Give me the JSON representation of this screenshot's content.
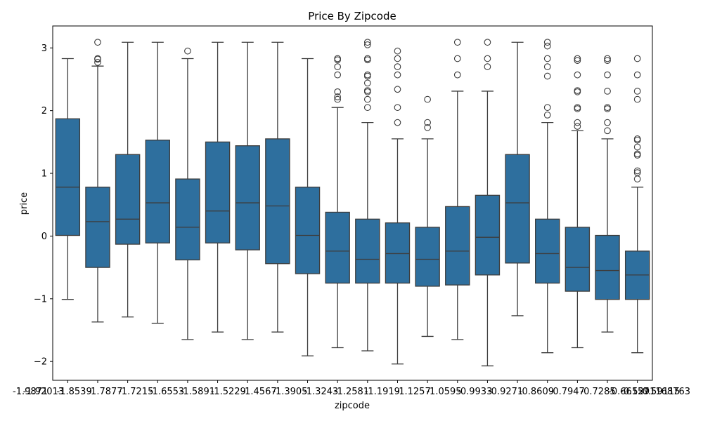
{
  "chart_data": {
    "type": "box",
    "title": "Price By Zipcode",
    "xlabel": "zipcode",
    "ylabel": "price",
    "ylim": [
      -2.3,
      3.35
    ],
    "yticks": [
      -2,
      -1,
      0,
      1,
      2,
      3
    ],
    "ytick_labels": [
      "−2",
      "−1",
      "0",
      "1",
      "2",
      "3"
    ],
    "box_color": "#2e6f9e",
    "line_color": "#3d3d3d",
    "xtick_label_segments": [
      "-1.9871",
      "-1.92013",
      "-1.8539",
      "-1.7877",
      "-1.7215",
      "-1.6553",
      "-1.5891",
      "-1.5229",
      "-1.4567",
      "-1.3905",
      "-1.3243",
      "-1.2581",
      "-1.1919",
      "-1.1257",
      "-1.0595",
      "-0.9933",
      "-0.9271",
      "-0.8609",
      "-0.7947",
      "-0.7285",
      "-0.66157",
      "-0.59115",
      "-0.5291168763"
    ],
    "boxes": [
      {
        "whislo": -1.01,
        "q1": 0.01,
        "med": 0.78,
        "q3": 1.87,
        "whishi": 2.83,
        "fliers": []
      },
      {
        "whislo": -1.37,
        "q1": -0.5,
        "med": 0.23,
        "q3": 0.78,
        "whishi": 2.71,
        "fliers": [
          2.77,
          2.82,
          2.83,
          3.09
        ]
      },
      {
        "whislo": -1.29,
        "q1": -0.13,
        "med": 0.27,
        "q3": 1.3,
        "whishi": 3.09,
        "fliers": []
      },
      {
        "whislo": -1.39,
        "q1": -0.11,
        "med": 0.53,
        "q3": 1.53,
        "whishi": 3.09,
        "fliers": []
      },
      {
        "whislo": -1.65,
        "q1": -0.38,
        "med": 0.14,
        "q3": 0.91,
        "whishi": 2.83,
        "fliers": [
          2.95
        ]
      },
      {
        "whislo": -1.53,
        "q1": -0.11,
        "med": 0.4,
        "q3": 1.5,
        "whishi": 3.09,
        "fliers": []
      },
      {
        "whislo": -1.65,
        "q1": -0.22,
        "med": 0.53,
        "q3": 1.44,
        "whishi": 3.09,
        "fliers": []
      },
      {
        "whislo": -1.53,
        "q1": -0.44,
        "med": 0.48,
        "q3": 1.55,
        "whishi": 3.09,
        "fliers": []
      },
      {
        "whislo": -1.91,
        "q1": -0.6,
        "med": 0.01,
        "q3": 0.78,
        "whishi": 2.83,
        "fliers": []
      },
      {
        "whislo": -1.78,
        "q1": -0.75,
        "med": -0.24,
        "q3": 0.38,
        "whishi": 2.05,
        "fliers": [
          2.18,
          2.22,
          2.3,
          2.57,
          2.7,
          2.81,
          2.83
        ]
      },
      {
        "whislo": -1.83,
        "q1": -0.75,
        "med": -0.37,
        "q3": 0.27,
        "whishi": 1.81,
        "fliers": [
          2.05,
          2.18,
          2.3,
          2.32,
          2.44,
          2.55,
          2.57,
          2.81,
          2.83,
          3.05,
          3.09
        ]
      },
      {
        "whislo": -2.04,
        "q1": -0.75,
        "med": -0.28,
        "q3": 0.21,
        "whishi": 1.55,
        "fliers": [
          1.81,
          2.05,
          2.34,
          2.57,
          2.7,
          2.83,
          2.95
        ]
      },
      {
        "whislo": -1.6,
        "q1": -0.8,
        "med": -0.37,
        "q3": 0.14,
        "whishi": 1.55,
        "fliers": [
          1.73,
          1.81,
          2.18
        ]
      },
      {
        "whislo": -1.65,
        "q1": -0.78,
        "med": -0.24,
        "q3": 0.47,
        "whishi": 2.31,
        "fliers": [
          2.57,
          2.83,
          3.09
        ]
      },
      {
        "whislo": -2.07,
        "q1": -0.62,
        "med": -0.02,
        "q3": 0.65,
        "whishi": 2.31,
        "fliers": [
          2.7,
          2.83,
          3.09
        ]
      },
      {
        "whislo": -1.27,
        "q1": -0.43,
        "med": 0.53,
        "q3": 1.3,
        "whishi": 3.09,
        "fliers": []
      },
      {
        "whislo": -1.86,
        "q1": -0.75,
        "med": -0.28,
        "q3": 0.27,
        "whishi": 1.81,
        "fliers": [
          1.93,
          2.05,
          2.55,
          2.7,
          2.83,
          3.03,
          3.09
        ]
      },
      {
        "whislo": -1.78,
        "q1": -0.88,
        "med": -0.5,
        "q3": 0.14,
        "whishi": 1.68,
        "fliers": [
          1.75,
          1.81,
          2.03,
          2.05,
          2.3,
          2.32,
          2.57,
          2.8,
          2.83
        ]
      },
      {
        "whislo": -1.53,
        "q1": -1.01,
        "med": -0.55,
        "q3": 0.01,
        "whishi": 1.55,
        "fliers": [
          1.68,
          1.81,
          2.03,
          2.05,
          2.31,
          2.57,
          2.8,
          2.83
        ]
      },
      {
        "whislo": -1.86,
        "q1": -1.01,
        "med": -0.62,
        "q3": -0.24,
        "whishi": 0.78,
        "fliers": [
          0.91,
          1.01,
          1.04,
          1.29,
          1.31,
          1.42,
          1.53,
          1.55,
          2.18,
          2.31,
          2.57,
          2.83
        ]
      }
    ]
  }
}
